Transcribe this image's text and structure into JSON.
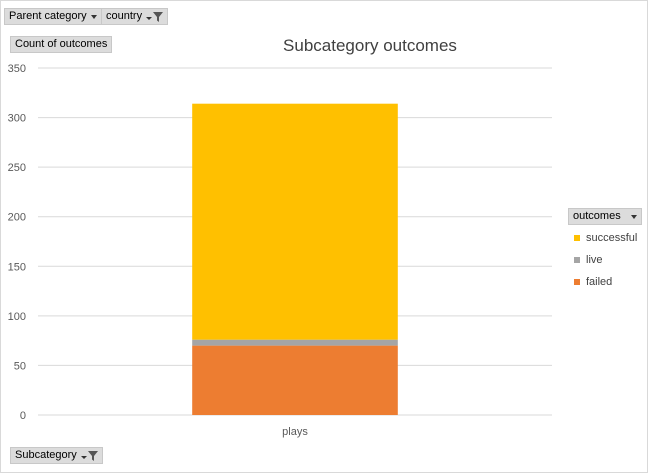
{
  "filters": {
    "parent_category": "Parent category",
    "country": "country",
    "y_field": "Count of outcomes",
    "axis_field": "Subcategory",
    "legend_field": "outcomes"
  },
  "colors": {
    "successful": "#FFC000",
    "live": "#A5A5A5",
    "failed": "#ED7D31",
    "grid": "#d9d9d9",
    "axis_text": "#595959"
  },
  "chart_data": {
    "type": "bar",
    "stacked": true,
    "title": "Subcategory outcomes",
    "categories": [
      "plays"
    ],
    "series": [
      {
        "name": "failed",
        "values": [
          70
        ]
      },
      {
        "name": "live",
        "values": [
          6
        ]
      },
      {
        "name": "successful",
        "values": [
          238
        ]
      }
    ],
    "ylim": [
      0,
      350
    ],
    "yticks": [
      0,
      50,
      100,
      150,
      200,
      250,
      300,
      350
    ],
    "grid": true,
    "legend_position": "right"
  },
  "legend": {
    "items": [
      {
        "label": "successful",
        "color": "#FFC000"
      },
      {
        "label": "live",
        "color": "#A5A5A5"
      },
      {
        "label": "failed",
        "color": "#ED7D31"
      }
    ]
  }
}
